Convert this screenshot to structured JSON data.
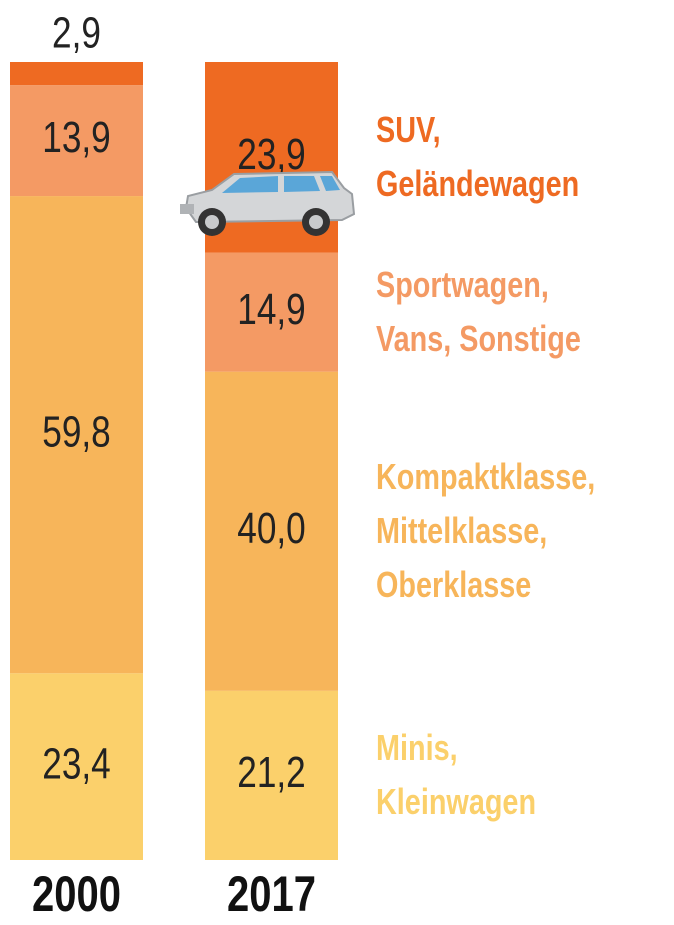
{
  "chart_data": {
    "type": "stacked_bar",
    "categories": [
      "2000",
      "2017"
    ],
    "series": [
      {
        "name": "Minis, Kleinwagen",
        "color": "#fbd06b",
        "values": [
          23.4,
          21.2
        ],
        "value_labels": [
          "23,4",
          "21,2"
        ]
      },
      {
        "name": "Kompaktklasse, Mittelklasse, Oberklasse",
        "color": "#f7b55a",
        "values": [
          59.8,
          40.0
        ],
        "value_labels": [
          "59,8",
          "40,0"
        ]
      },
      {
        "name": "Sportwagen, Vans, Sonstige",
        "color": "#f49a64",
        "values": [
          13.9,
          14.9
        ],
        "value_labels": [
          "13,9",
          "14,9"
        ]
      },
      {
        "name": "SUV, Geländewagen",
        "color": "#ee6a22",
        "values": [
          2.9,
          23.9
        ],
        "value_labels": [
          "2,9",
          "23,9"
        ]
      }
    ]
  }
}
